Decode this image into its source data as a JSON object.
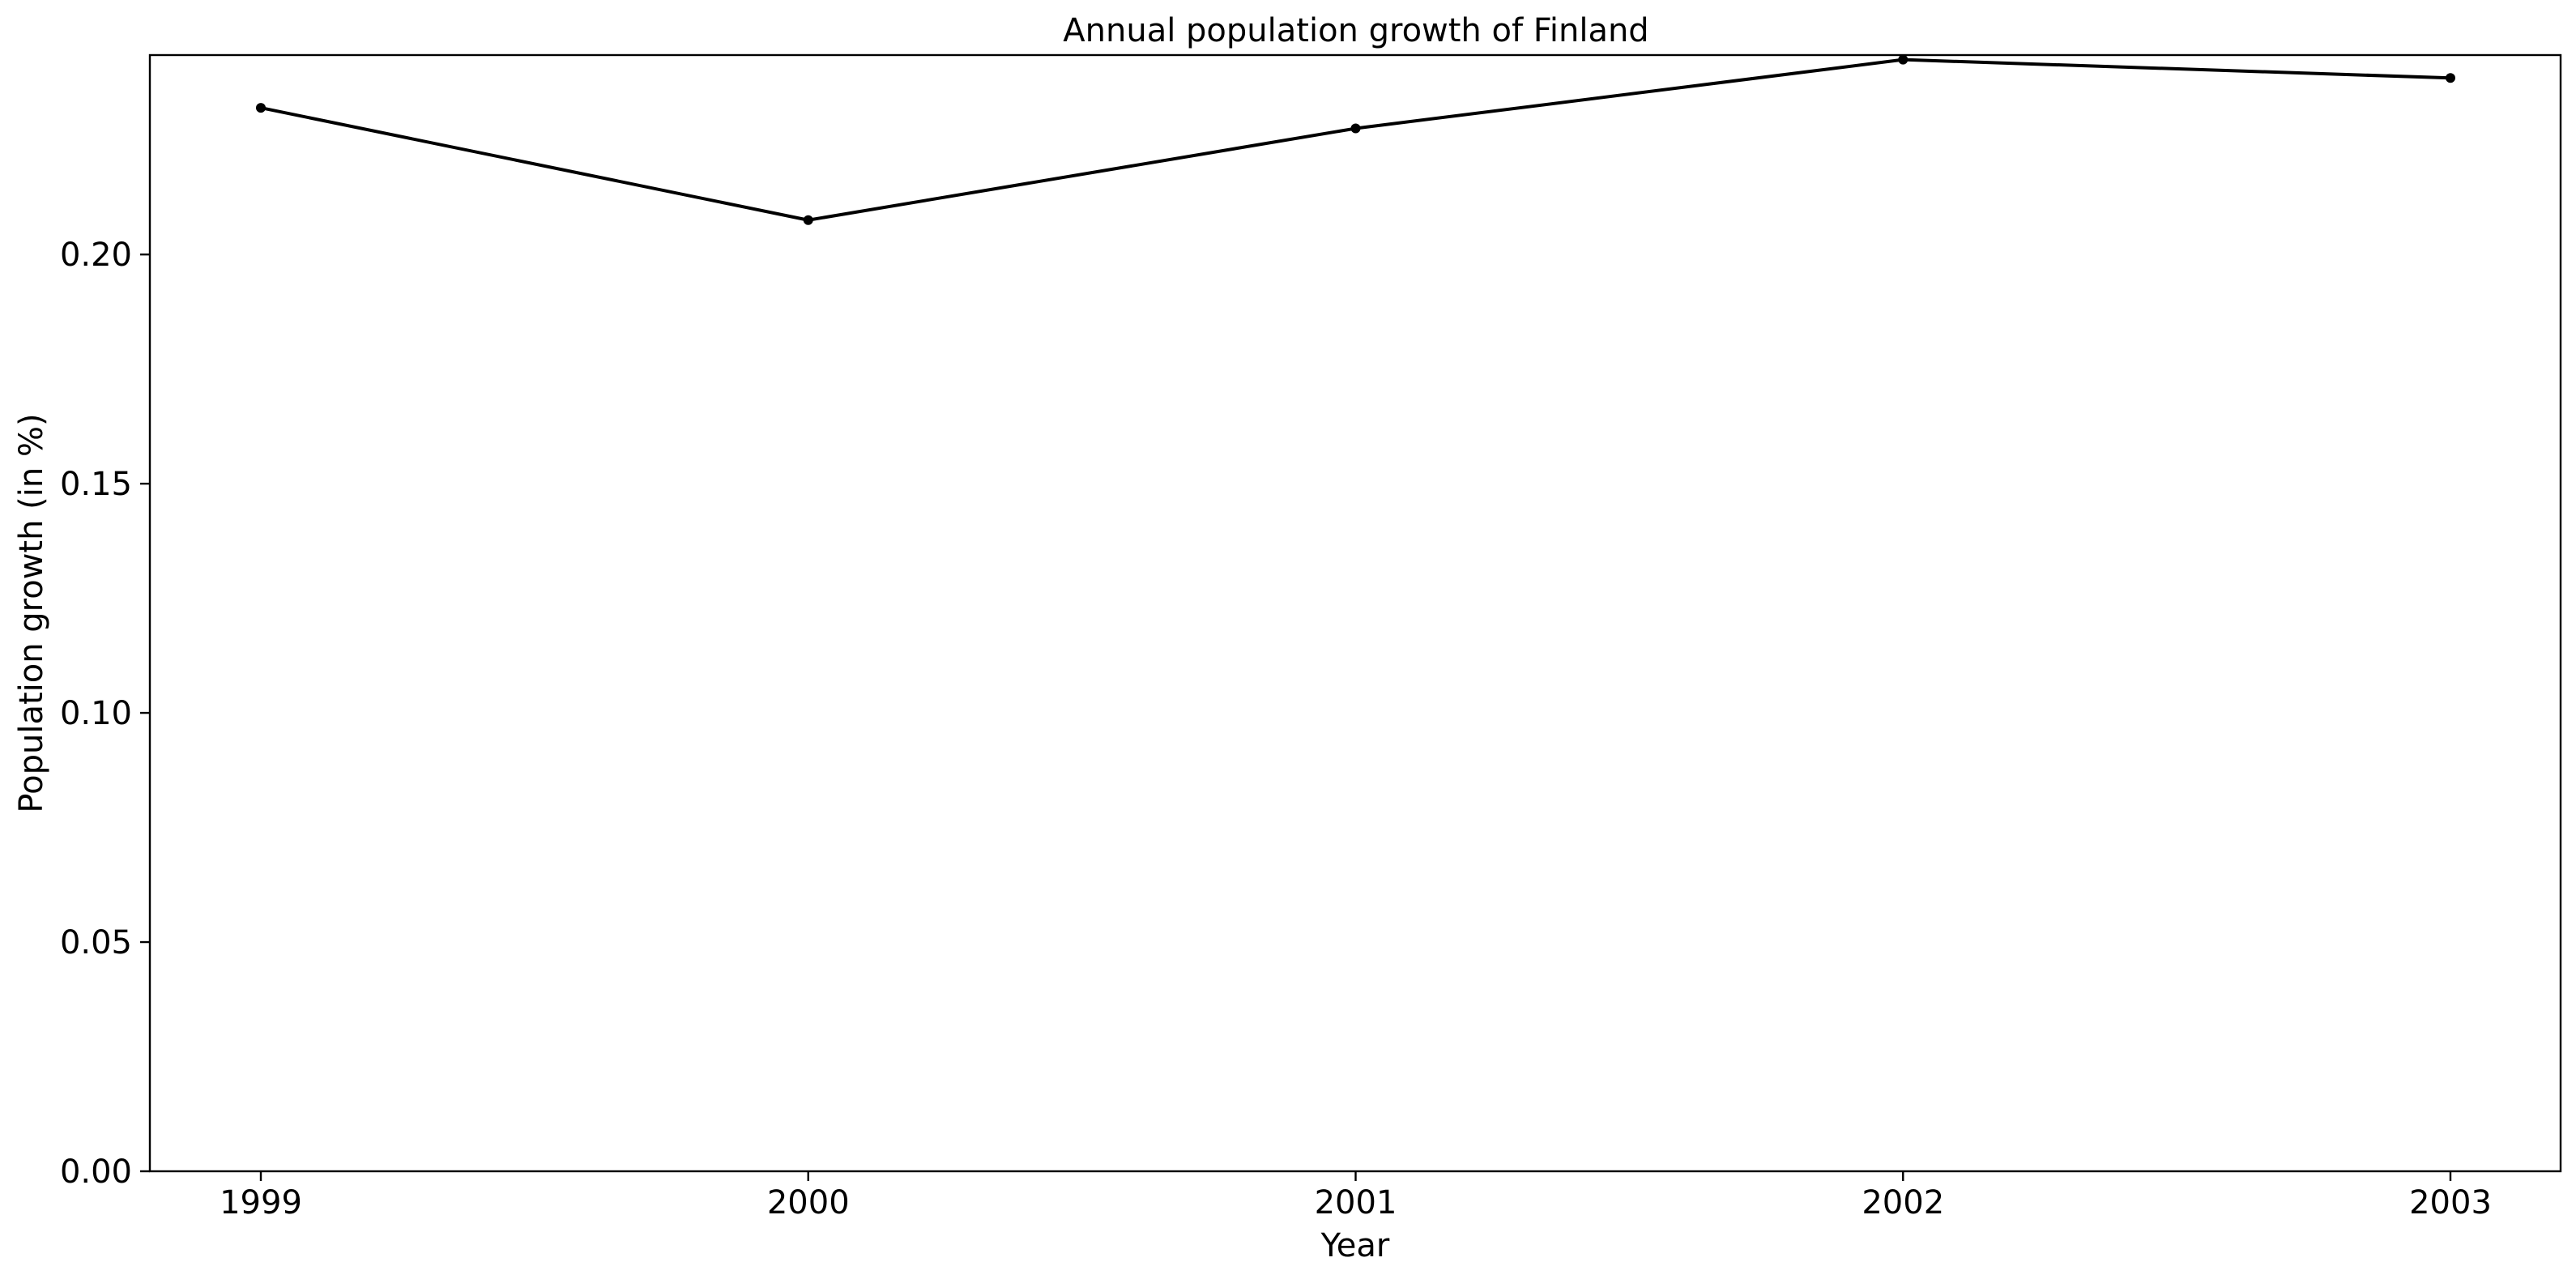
{
  "chart_data": {
    "type": "line",
    "title": "Annual population growth of Finland",
    "xlabel": "Year",
    "ylabel": "Population growth (in %)",
    "x": [
      "1999",
      "2000",
      "2001",
      "2002",
      "2003"
    ],
    "series": [
      {
        "values": [
          0.232,
          0.2075,
          0.2275,
          0.2425,
          0.2385
        ]
      }
    ],
    "ylim": [
      0,
      0.2435
    ],
    "yticks": [
      "0.00",
      "0.05",
      "0.10",
      "0.15",
      "0.20"
    ],
    "ytick_values": [
      0,
      0.05,
      0.1,
      0.15,
      0.2
    ],
    "grid": false,
    "line_color": "#000000",
    "marker": "dot"
  }
}
